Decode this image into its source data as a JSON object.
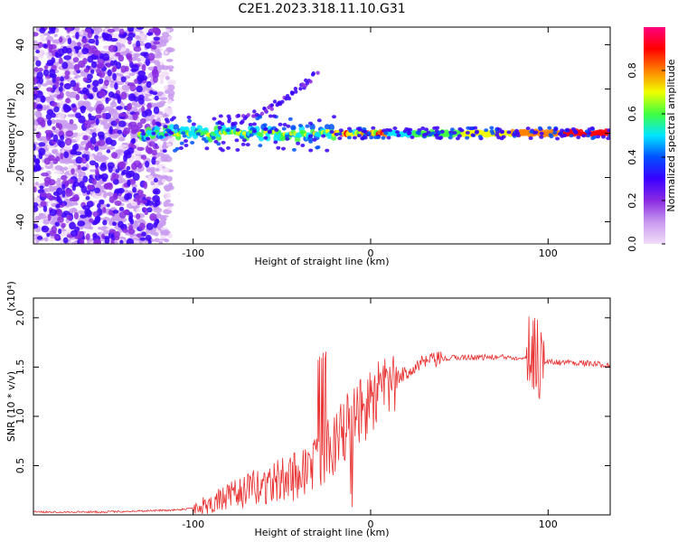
{
  "figure_title": "C2E1.2023.318.11.10.G31",
  "chart_data": [
    {
      "type": "heatmap",
      "title": "C2E1.2023.318.11.10.G31",
      "xlabel": "Height of straight line (km)",
      "ylabel": "Frequency (Hz)",
      "xlim": [
        -190,
        135
      ],
      "ylim": [
        -50,
        48
      ],
      "xticks": [
        {
          "value": -100,
          "label": "-100"
        },
        {
          "value": 0,
          "label": "0"
        },
        {
          "value": 100,
          "label": "100"
        }
      ],
      "yticks": [
        {
          "value": 40,
          "label": "40"
        },
        {
          "value": 20,
          "label": "20"
        },
        {
          "value": 0,
          "label": "0"
        },
        {
          "value": -20,
          "label": "-20"
        },
        {
          "value": -40,
          "label": "-40"
        }
      ],
      "colorbar": {
        "label": "Normalized spectral amplitude",
        "range": [
          0,
          1
        ],
        "ticks": [
          {
            "value": 0.0,
            "label": "0.0"
          },
          {
            "value": 0.2,
            "label": "0.2"
          },
          {
            "value": 0.4,
            "label": "0.4"
          },
          {
            "value": 0.6,
            "label": "0.6"
          },
          {
            "value": 0.8,
            "label": "0.8"
          }
        ],
        "colors": [
          "#f2ddf8",
          "#c89af0",
          "#8a2be2",
          "#3a00ff",
          "#0050ff",
          "#00e5ff",
          "#40ff40",
          "#f0ff00",
          "#ff8000",
          "#ff0000",
          "#ff0080"
        ]
      },
      "description_features": {
        "noise_region_x": [
          -190,
          -120
        ],
        "carrier_start_x": -130,
        "carrier_freq": 0,
        "rising_arc": {
          "x": [
            -80,
            -60,
            -45,
            -30
          ],
          "y": [
            5,
            10,
            17,
            27
          ]
        }
      }
    },
    {
      "type": "line",
      "title": "",
      "xlabel": "Height of straight line (km)",
      "ylabel": "SNR (10 * v/v)",
      "y_multiplier_label": "(x10⁴)",
      "xlim": [
        -190,
        135
      ],
      "ylim": [
        0,
        2.2
      ],
      "xticks": [
        {
          "value": -100,
          "label": "-100"
        },
        {
          "value": 0,
          "label": "0"
        },
        {
          "value": 100,
          "label": "100"
        }
      ],
      "yticks": [
        {
          "value": 0.5,
          "label": "0.5"
        },
        {
          "value": 1.0,
          "label": "1.0"
        },
        {
          "value": 1.5,
          "label": "1.5"
        },
        {
          "value": 2.0,
          "label": "2.0"
        }
      ],
      "line_color": "#e83030",
      "series": [
        {
          "name": "SNR",
          "x": [
            -190,
            -170,
            -150,
            -130,
            -110,
            -100,
            -90,
            -80,
            -70,
            -60,
            -50,
            -40,
            -30,
            -20,
            -10,
            0,
            10,
            20,
            30,
            40,
            50,
            60,
            70,
            80,
            85,
            90,
            93,
            95,
            97,
            100,
            110,
            120,
            135
          ],
          "y": [
            0.03,
            0.03,
            0.03,
            0.04,
            0.05,
            0.07,
            0.12,
            0.18,
            0.25,
            0.3,
            0.35,
            0.42,
            0.55,
            0.75,
            0.95,
            1.15,
            1.3,
            1.45,
            1.55,
            1.58,
            1.6,
            1.6,
            1.6,
            1.6,
            1.6,
            1.62,
            1.7,
            1.6,
            1.55,
            1.55,
            1.55,
            1.54,
            1.52
          ]
        }
      ]
    }
  ]
}
